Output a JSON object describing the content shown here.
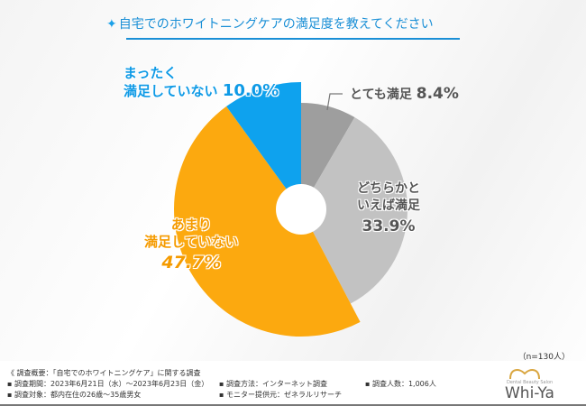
{
  "title": "自宅でのホワイトニングケアの満足度を教えてください",
  "title_icon": "sparkle-icon",
  "colors": {
    "title": "#1a8fd6",
    "very_satisfied": "#9e9e9e",
    "somewhat_satisfied": "#c2c2c2",
    "not_very": "#fca90f",
    "not_at_all": "#0ea2ee"
  },
  "chart_data": {
    "type": "pie",
    "style": "donut",
    "start": "top, clockwise",
    "slices": [
      {
        "label": "とても満足",
        "value": 8.4,
        "display": "8.4%"
      },
      {
        "label": "どちらかといえば満足",
        "value": 33.9,
        "display": "33.9%"
      },
      {
        "label": "あまり満足していない",
        "value": 47.7,
        "display": "47.7%"
      },
      {
        "label": "まったく満足していない",
        "value": 10.0,
        "display": "10.0%"
      }
    ]
  },
  "labels": {
    "very_satisfied": "とても満足",
    "somewhat_l1": "どちらかと",
    "somewhat_l2": "いえば満足",
    "not_very_l1": "あまり",
    "not_very_l2": "満足していない",
    "not_at_all_l1": "まったく",
    "not_at_all_l2": "満足していない"
  },
  "sample": "（n=130人）",
  "footer": {
    "overview": "《 調査概要：「自宅でのホワイトニングケア」に関する調査",
    "period": "▪ 調査期間：2023年6月21日（水）～2023年6月23日（金）",
    "target": "▪ 調査対象：都内在住の26歳～35歳男女",
    "method": "▪ 調査方法：インターネット調査",
    "provider": "▪ モニター提供元：ゼネラルリサーチ",
    "count": "▪ 調査人数：1,006人"
  },
  "logo": {
    "text": "Whi-Ya",
    "sub": "Dental Beauty Salon"
  }
}
